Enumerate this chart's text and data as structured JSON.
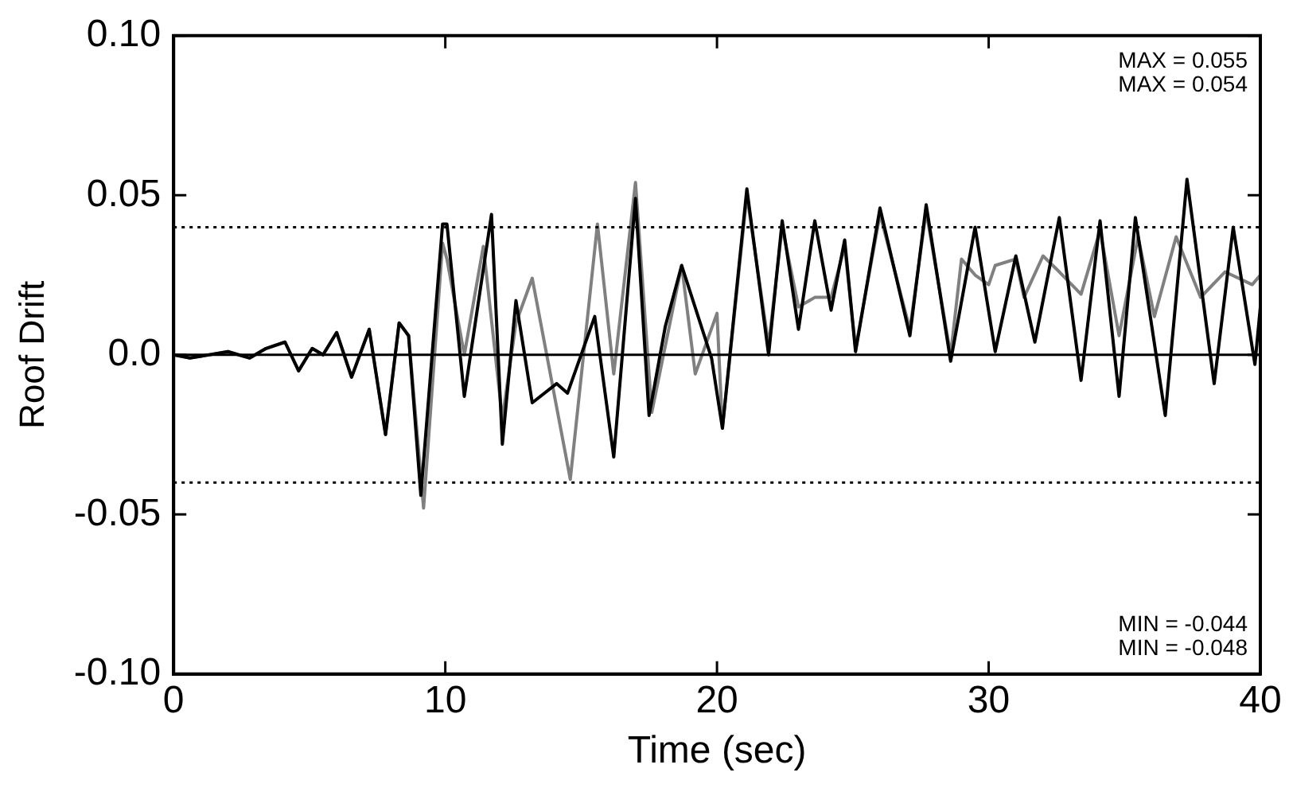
{
  "chart_data": {
    "type": "line",
    "xlabel": "Time (sec)",
    "ylabel": "Roof Drift",
    "xlim": [
      0,
      40
    ],
    "xticks": [
      0,
      10,
      20,
      30,
      40
    ],
    "ylim": [
      -0.1,
      0.1
    ],
    "yticks": [
      {
        "value": -0.1,
        "label": "-0.10"
      },
      {
        "value": -0.05,
        "label": "-0.05"
      },
      {
        "value": 0,
        "label": "0.0"
      },
      {
        "value": 0.05,
        "label": "0.05"
      },
      {
        "value": 0.1,
        "label": "0.10"
      }
    ],
    "grid": false,
    "legend": false,
    "marker": "none",
    "line_style": "solid",
    "ref_lines": [
      {
        "axis": "y",
        "value": 0.04,
        "line_style": "dotted",
        "color": "#000000"
      },
      {
        "axis": "y",
        "value": -0.04,
        "line_style": "dotted",
        "color": "#000000"
      },
      {
        "axis": "y",
        "value": 0,
        "line_style": "solid",
        "color": "#000000"
      }
    ],
    "annotations": [
      "MAX = 0.055",
      "MAX = 0.054",
      "MIN = -0.044",
      "MIN = -0.048"
    ],
    "series": [
      {
        "color": "#000000",
        "x": [
          0,
          0.6,
          2.0,
          2.8,
          3.4,
          4.1,
          4.6,
          5.1,
          5.5,
          6.0,
          6.55,
          7.2,
          7.8,
          8.3,
          8.65,
          9.1,
          9.9,
          10.06,
          10.7,
          11.7,
          12.1,
          12.6,
          13.2,
          14.1,
          14.5,
          15.5,
          16.2,
          17.0,
          17.5,
          18.1,
          18.7,
          19.8,
          20.2,
          21.1,
          21.9,
          22.4,
          23.0,
          23.6,
          24.2,
          24.7,
          25.1,
          26.0,
          27.1,
          27.7,
          28.6,
          29.5,
          30.24,
          31.0,
          31.7,
          32.6,
          33.4,
          34.1,
          34.8,
          35.4,
          36.5,
          37.3,
          38.3,
          39.0,
          39.8,
          40
        ],
        "values": [
          0,
          -0.001,
          0.001,
          -0.001,
          0.002,
          0.004,
          -0.005,
          0.002,
          0,
          0.007,
          -0.007,
          0.008,
          -0.025,
          0.01,
          0.006,
          -0.044,
          0.041,
          0.041,
          -0.013,
          0.044,
          -0.028,
          0.017,
          -0.015,
          -0.009,
          -0.012,
          0.012,
          -0.032,
          0.049,
          -0.019,
          0.009,
          0.028,
          -0.001,
          -0.023,
          0.052,
          0,
          0.042,
          0.008,
          0.042,
          0.014,
          0.036,
          0.001,
          0.046,
          0.006,
          0.047,
          -0.002,
          0.04,
          0.001,
          0.031,
          0.004,
          0.043,
          -0.008,
          0.042,
          -0.013,
          0.043,
          -0.019,
          0.055,
          -0.009,
          0.04,
          -0.003,
          0.015
        ]
      },
      {
        "color": "#808080",
        "x": [
          0,
          0.6,
          2.0,
          2.8,
          3.4,
          4.1,
          4.6,
          5.1,
          5.5,
          6.0,
          6.55,
          7.2,
          7.8,
          8.3,
          8.65,
          9.2,
          9.9,
          10.06,
          10.7,
          11.4,
          12.1,
          12.6,
          13.2,
          14.6,
          15.6,
          16.2,
          17.0,
          17.6,
          18.7,
          19.2,
          20.0,
          20.2,
          21.1,
          21.9,
          22.4,
          23.0,
          23.6,
          24.2,
          24.7,
          25.1,
          26.0,
          27.1,
          27.7,
          28.6,
          29.0,
          29.5,
          30.0,
          30.24,
          31.0,
          31.3,
          32.0,
          32.6,
          33.4,
          34.1,
          34.8,
          35.5,
          36.1,
          36.9,
          37.8,
          38.7,
          39.7,
          40
        ],
        "values": [
          0,
          -0.001,
          0.001,
          -0.001,
          0.002,
          0.004,
          -0.005,
          0.002,
          0,
          0.007,
          -0.007,
          0.008,
          -0.025,
          0.01,
          0.006,
          -0.048,
          0.035,
          0.03,
          0,
          0.034,
          -0.02,
          0.01,
          0.024,
          -0.039,
          0.041,
          -0.006,
          0.054,
          -0.018,
          0.028,
          -0.006,
          0.013,
          -0.023,
          0.05,
          0.003,
          0.04,
          0.015,
          0.018,
          0.018,
          0.034,
          0.002,
          0.044,
          0.008,
          0.045,
          0,
          0.03,
          0.025,
          0.022,
          0.028,
          0.03,
          0.018,
          0.031,
          0.026,
          0.019,
          0.039,
          0.006,
          0.037,
          0.012,
          0.037,
          0.018,
          0.026,
          0.022,
          0.025
        ]
      }
    ]
  }
}
